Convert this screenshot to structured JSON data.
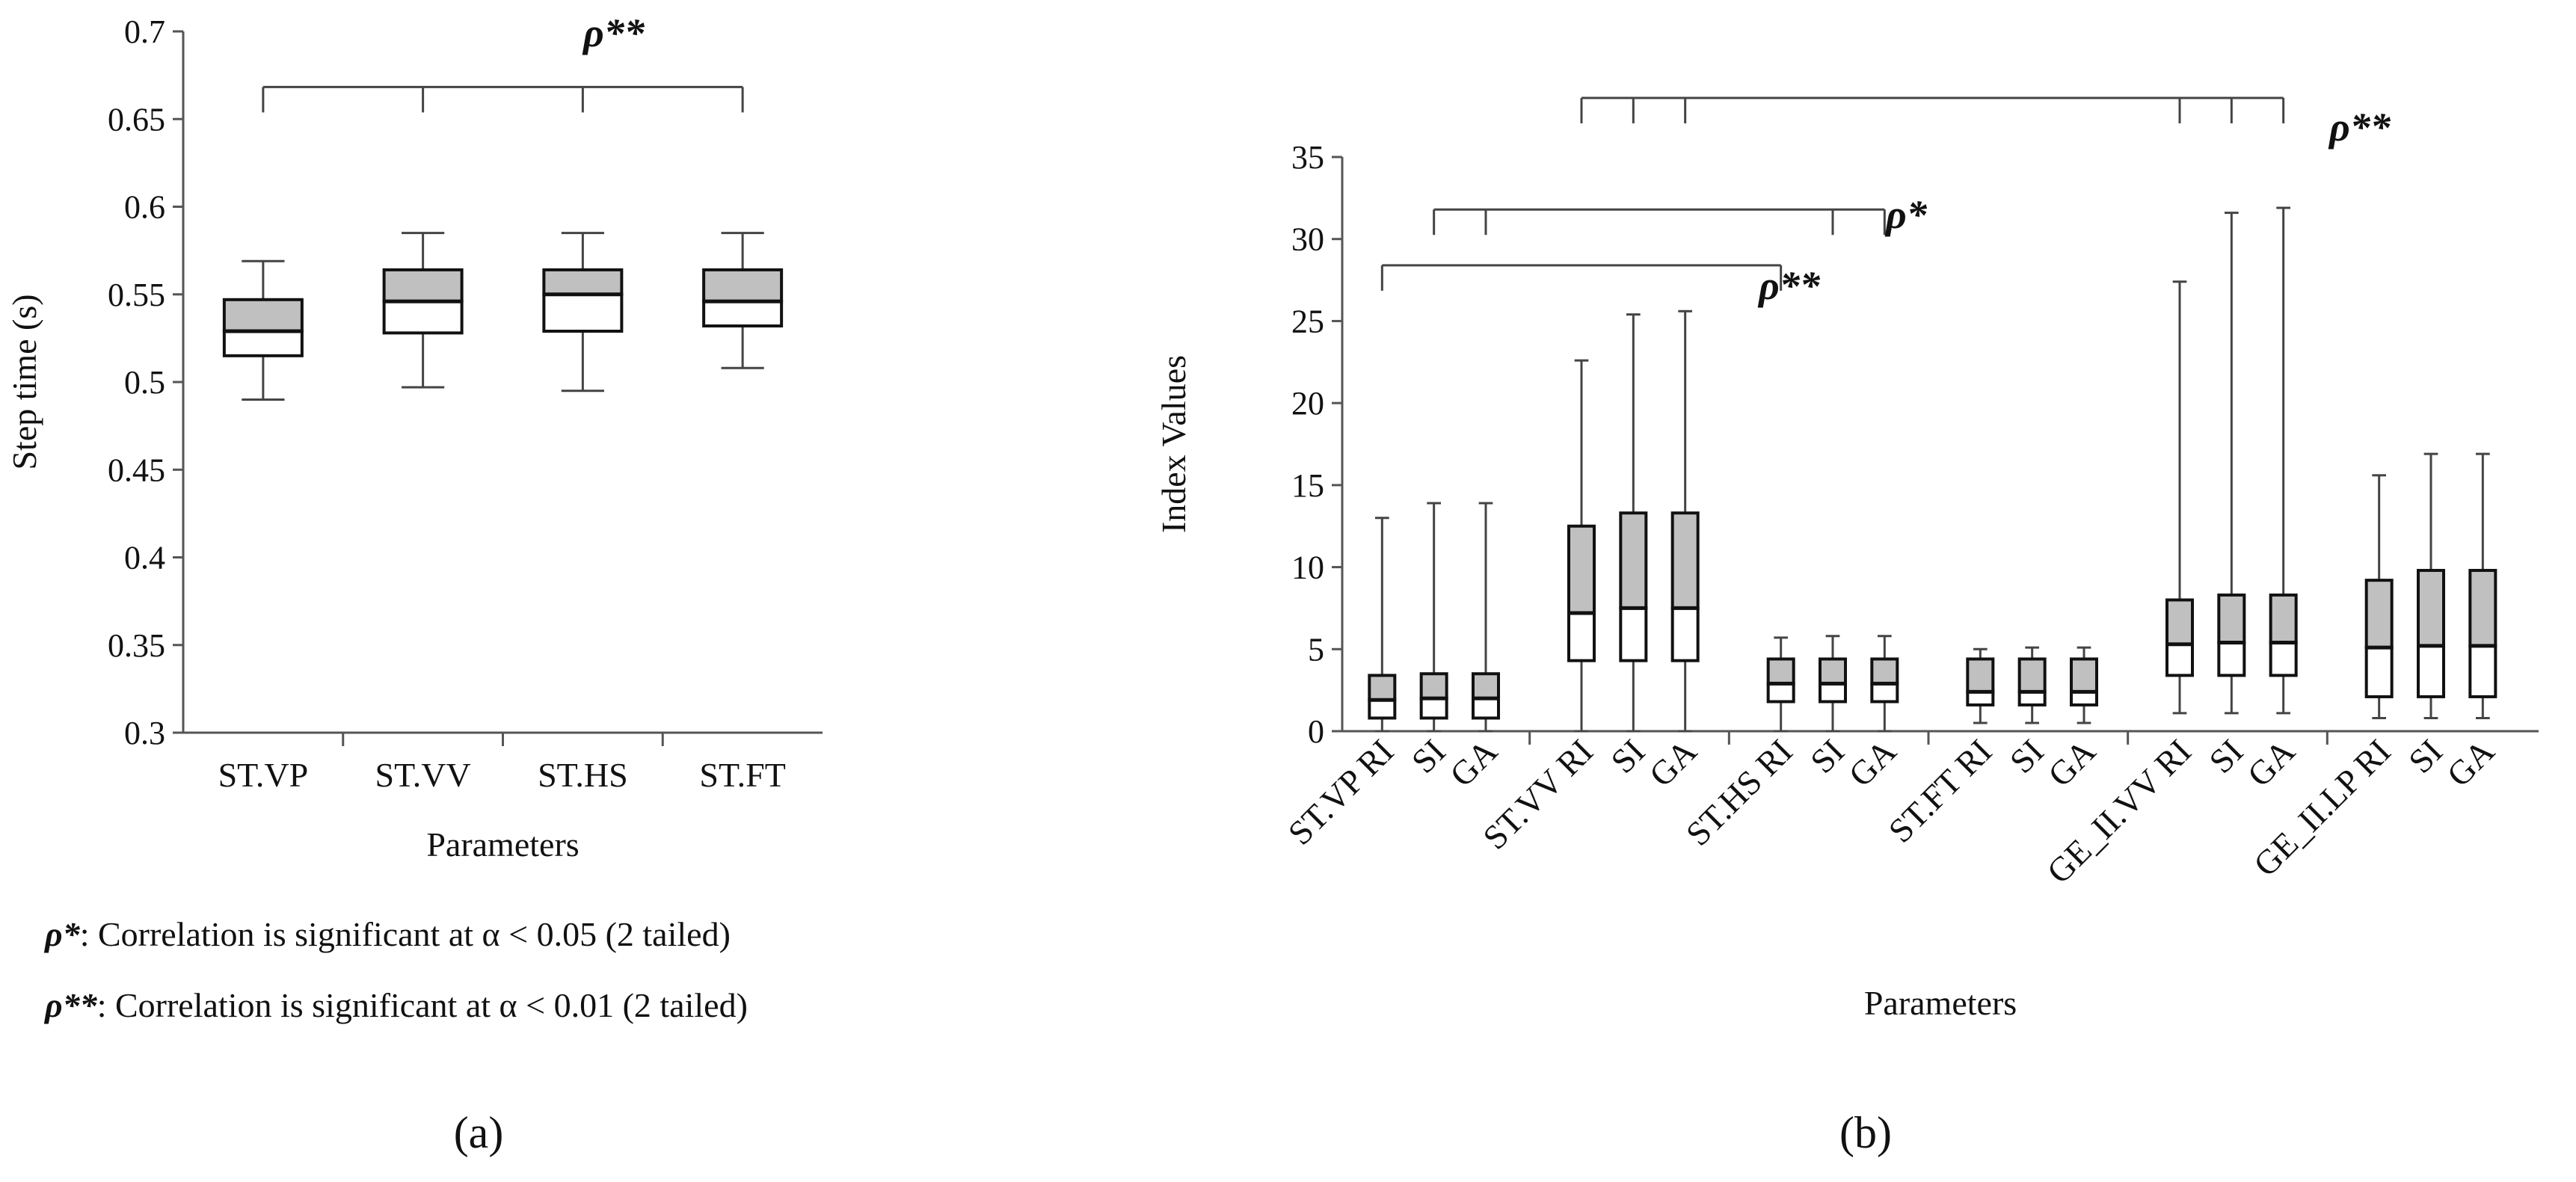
{
  "figure": {
    "caption_a": "(a)",
    "caption_b": "(b)",
    "legend_sig05_symbol": "ρ*",
    "legend_sig05_text": ": Correlation is significant at α < 0.05 (2 tailed)",
    "legend_sig01_symbol": "ρ**",
    "legend_sig01_text": ": Correlation is significant at α < 0.01 (2 tailed)"
  },
  "colors": {
    "box_upper": "#c0c0c0",
    "box_lower": "#ffffff",
    "line": "#444444",
    "axis": "#555555"
  },
  "chart_data": [
    {
      "id": "a",
      "type": "boxplot",
      "xlabel": "Parameters",
      "ylabel": "Step time (s)",
      "ylim": [
        0.3,
        0.7
      ],
      "yticks": [
        0.3,
        0.35,
        0.4,
        0.45,
        0.5,
        0.55,
        0.6,
        0.65,
        0.7
      ],
      "ytick_labels": [
        "0.3",
        "0.35",
        "0.4",
        "0.45",
        "0.5",
        "0.55",
        "0.6",
        "0.65",
        "0.7"
      ],
      "categories": [
        "ST.VP",
        "ST.VV",
        "ST.HS",
        "ST.FT"
      ],
      "boxes": [
        {
          "label": "ST.VP",
          "min": 0.49,
          "q1": 0.515,
          "median": 0.529,
          "q3": 0.547,
          "max": 0.569
        },
        {
          "label": "ST.VV",
          "min": 0.497,
          "q1": 0.528,
          "median": 0.546,
          "q3": 0.564,
          "max": 0.585
        },
        {
          "label": "ST.HS",
          "min": 0.495,
          "q1": 0.529,
          "median": 0.55,
          "q3": 0.564,
          "max": 0.585
        },
        {
          "label": "ST.FT",
          "min": 0.508,
          "q1": 0.532,
          "median": 0.546,
          "q3": 0.564,
          "max": 0.585
        }
      ],
      "brackets": [
        {
          "label": "ρ**",
          "y": 0.667,
          "connect": [
            "ST.VP",
            "ST.VV",
            "ST.HS",
            "ST.FT"
          ]
        }
      ]
    },
    {
      "id": "b",
      "type": "boxplot",
      "xlabel": "Parameters",
      "ylabel": "Index Values",
      "ylim": [
        0,
        35
      ],
      "yticks": [
        0,
        5,
        10,
        15,
        20,
        25,
        30,
        35
      ],
      "ytick_labels": [
        "0",
        "5",
        "10",
        "15",
        "20",
        "25",
        "30",
        "35"
      ],
      "groups": [
        {
          "name": "ST.VP",
          "labels": [
            "ST.VP RI",
            "SI",
            "GA"
          ]
        },
        {
          "name": "ST.VV",
          "labels": [
            "ST.VV RI",
            "SI",
            "GA"
          ]
        },
        {
          "name": "ST.HS",
          "labels": [
            "ST.HS RI",
            "SI",
            "GA"
          ]
        },
        {
          "name": "ST.FT",
          "labels": [
            "ST.FT RI",
            "SI",
            "GA"
          ]
        },
        {
          "name": "GE_II.VV",
          "labels": [
            "GE_II.VV RI",
            "SI",
            "GA"
          ]
        },
        {
          "name": "GE_II.LP",
          "labels": [
            "GE_II.LP RI",
            "SI",
            "GA"
          ]
        }
      ],
      "boxes": [
        {
          "group": "ST.VP",
          "label": "RI",
          "min": 0,
          "q1": 0.8,
          "median": 1.9,
          "q3": 3.4,
          "max": 13.0
        },
        {
          "group": "ST.VP",
          "label": "SI",
          "min": 0,
          "q1": 0.8,
          "median": 2.0,
          "q3": 3.5,
          "max": 13.9
        },
        {
          "group": "ST.VP",
          "label": "GA",
          "min": 0,
          "q1": 0.8,
          "median": 2.0,
          "q3": 3.5,
          "max": 13.9
        },
        {
          "group": "ST.VV",
          "label": "RI",
          "min": 0,
          "q1": 4.3,
          "median": 7.2,
          "q3": 12.5,
          "max": 22.6
        },
        {
          "group": "ST.VV",
          "label": "SI",
          "min": 0,
          "q1": 4.3,
          "median": 7.5,
          "q3": 13.3,
          "max": 25.4
        },
        {
          "group": "ST.VV",
          "label": "GA",
          "min": 0,
          "q1": 4.3,
          "median": 7.5,
          "q3": 13.3,
          "max": 25.6
        },
        {
          "group": "ST.HS",
          "label": "RI",
          "min": 0,
          "q1": 1.8,
          "median": 2.9,
          "q3": 4.4,
          "max": 5.7
        },
        {
          "group": "ST.HS",
          "label": "SI",
          "min": 0,
          "q1": 1.8,
          "median": 2.9,
          "q3": 4.4,
          "max": 5.8
        },
        {
          "group": "ST.HS",
          "label": "GA",
          "min": 0,
          "q1": 1.8,
          "median": 2.9,
          "q3": 4.4,
          "max": 5.8
        },
        {
          "group": "ST.FT",
          "label": "RI",
          "min": 0.5,
          "q1": 1.6,
          "median": 2.4,
          "q3": 4.4,
          "max": 5.0
        },
        {
          "group": "ST.FT",
          "label": "SI",
          "min": 0.5,
          "q1": 1.6,
          "median": 2.4,
          "q3": 4.4,
          "max": 5.1
        },
        {
          "group": "ST.FT",
          "label": "GA",
          "min": 0.5,
          "q1": 1.6,
          "median": 2.4,
          "q3": 4.4,
          "max": 5.1
        },
        {
          "group": "GE_II.VV",
          "label": "RI",
          "min": 1.1,
          "q1": 3.4,
          "median": 5.3,
          "q3": 8.0,
          "max": 27.4
        },
        {
          "group": "GE_II.VV",
          "label": "SI",
          "min": 1.1,
          "q1": 3.4,
          "median": 5.4,
          "q3": 8.3,
          "max": 31.6
        },
        {
          "group": "GE_II.VV",
          "label": "GA",
          "min": 1.1,
          "q1": 3.4,
          "median": 5.4,
          "q3": 8.3,
          "max": 31.9
        },
        {
          "group": "GE_II.LP",
          "label": "RI",
          "min": 0.8,
          "q1": 2.1,
          "median": 5.1,
          "q3": 9.2,
          "max": 15.6
        },
        {
          "group": "GE_II.LP",
          "label": "SI",
          "min": 0.8,
          "q1": 2.1,
          "median": 5.2,
          "q3": 9.8,
          "max": 16.9
        },
        {
          "group": "GE_II.LP",
          "label": "GA",
          "min": 0.8,
          "q1": 2.1,
          "median": 5.2,
          "q3": 9.8,
          "max": 16.9
        }
      ],
      "brackets": [
        {
          "label": "ρ**",
          "y": 38.6,
          "connect": [
            "ST.VV RI",
            "ST.VV SI",
            "ST.VV GA",
            "GE_II.VV RI",
            "GE_II.VV SI",
            "GE_II.VV GA"
          ]
        },
        {
          "label": "ρ*",
          "y": 31.8,
          "connect": [
            "ST.VP SI",
            "ST.VP GA",
            "ST.HS SI",
            "ST.HS GA"
          ]
        },
        {
          "label": "ρ**",
          "y": 28.4,
          "connect": [
            "ST.VP RI",
            "ST.HS RI"
          ]
        }
      ]
    }
  ]
}
